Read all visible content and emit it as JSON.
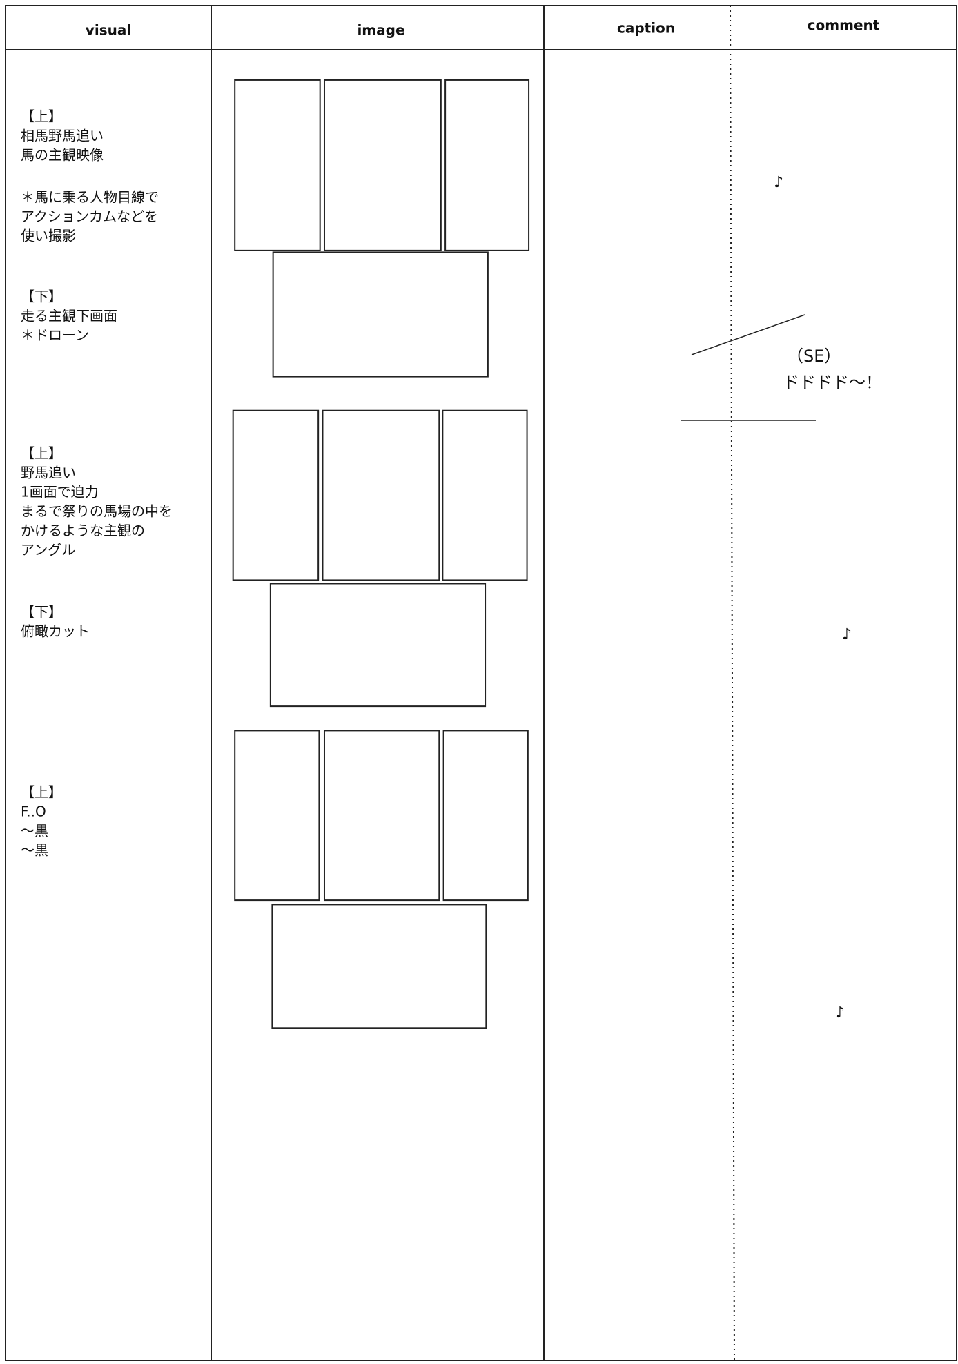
{
  "header": {
    "columns": [
      "visual",
      "image",
      "caption",
      "comment"
    ]
  },
  "visual_notes": [
    {
      "lines": [
        "【上】",
        "相馬野馬追い",
        "馬の主観映像"
      ]
    },
    {
      "lines": [
        "＊馬に乗る人物目線で",
        "アクションカムなどを",
        "使い撮影"
      ]
    },
    {
      "lines": [
        "【下】",
        "走る主観下画面",
        "＊ドローン"
      ]
    },
    {
      "lines": [
        "【上】",
        "野馬追い",
        "1画面で迫力",
        "まるで祭りの馬場の中を",
        "かけるような主観の",
        "アングル"
      ]
    },
    {
      "lines": [
        "【下】",
        "俯瞰カット"
      ]
    },
    {
      "lines": [
        "【上】",
        "F..O",
        "～黒",
        "～黒"
      ]
    }
  ],
  "comments": [
    "♪",
    "（SE）",
    "ドドドド～！",
    "♪",
    "♪"
  ]
}
